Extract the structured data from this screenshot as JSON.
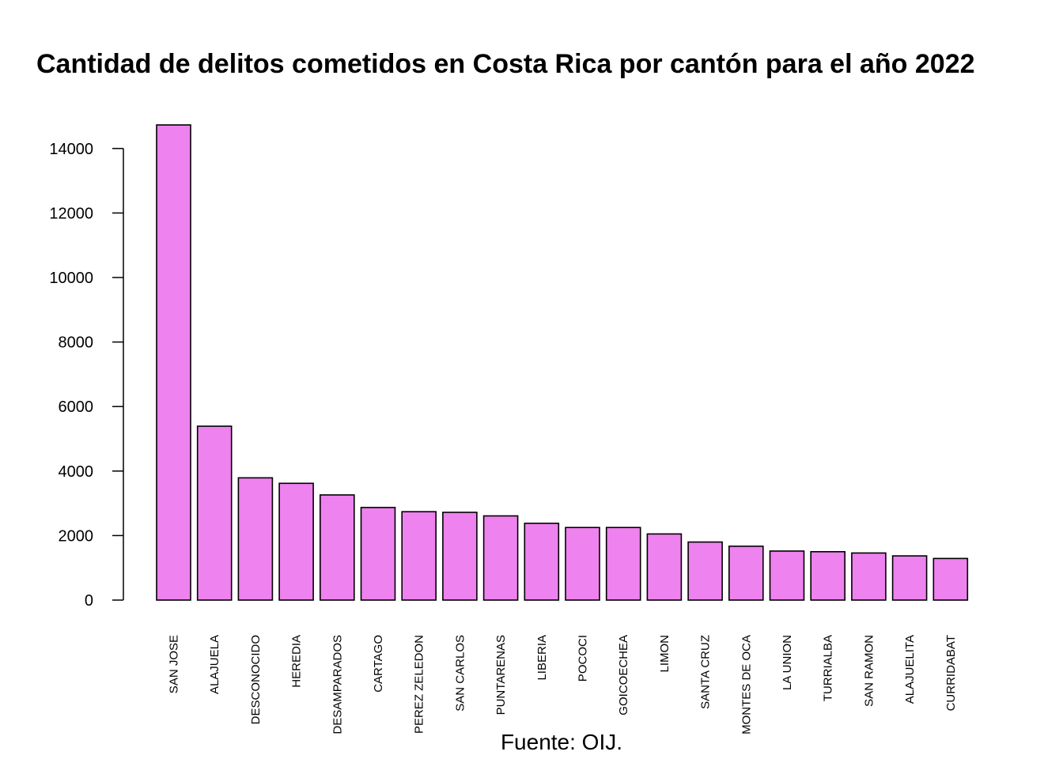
{
  "chart_data": {
    "type": "bar",
    "title": "Cantidad de delitos cometidos en Costa Rica por cantón para el año 2022",
    "caption": "Fuente: OIJ.",
    "xlabel": "",
    "ylabel": "",
    "categories": [
      "SAN JOSE",
      "ALAJUELA",
      "DESCONOCIDO",
      "HEREDIA",
      "DESAMPARADOS",
      "CARTAGO",
      "PEREZ ZELEDON",
      "SAN CARLOS",
      "PUNTARENAS",
      "LIBERIA",
      "POCOCI",
      "GOICOECHEA",
      "LIMON",
      "SANTA CRUZ",
      "MONTES DE OCA",
      "LA UNION",
      "TURRIALBA",
      "SAN RAMON",
      "ALAJUELITA",
      "CURRIDABAT"
    ],
    "values": [
      14730,
      5390,
      3790,
      3620,
      3260,
      2870,
      2740,
      2720,
      2610,
      2380,
      2250,
      2250,
      2050,
      1800,
      1670,
      1520,
      1500,
      1460,
      1370,
      1290
    ],
    "yticks": [
      "0",
      "2000",
      "4000",
      "6000",
      "8000",
      "10000",
      "12000",
      "14000"
    ],
    "ylim": [
      0,
      14730
    ],
    "bar_color": "#ee82ee",
    "grid": false,
    "legend": "none"
  }
}
